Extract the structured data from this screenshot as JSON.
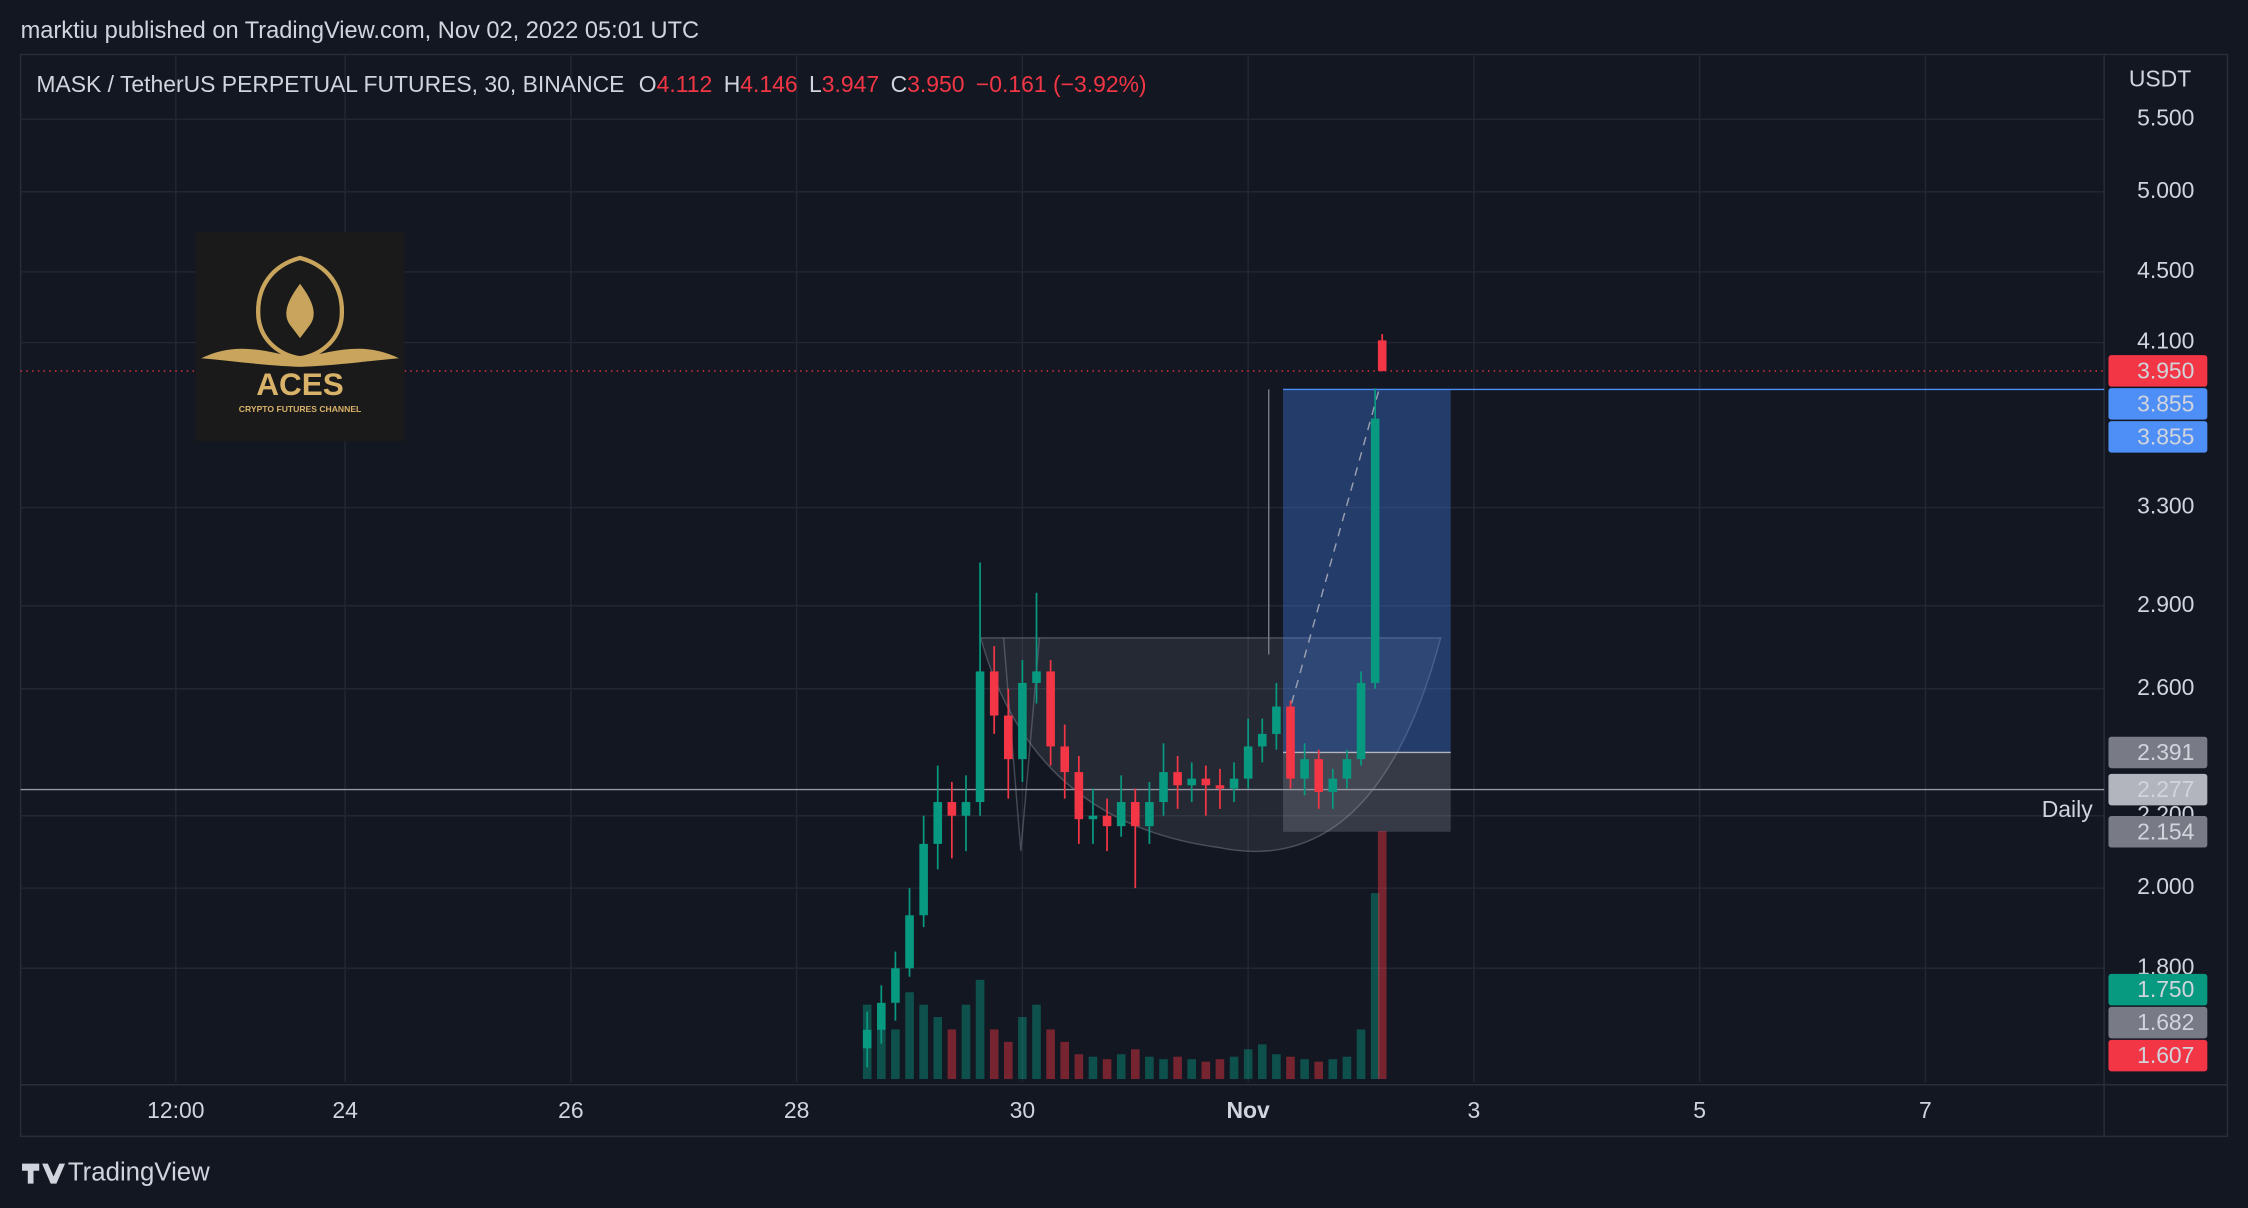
{
  "header": {
    "publisher": "marktiu published on TradingView.com, Nov 02, 2022 05:01 UTC",
    "symbol": "MASK / TetherUS PERPETUAL FUTURES, 30, BINANCE",
    "ohlc": [
      {
        "key": "O",
        "value": "4.112"
      },
      {
        "key": "H",
        "value": "4.146"
      },
      {
        "key": "L",
        "value": "3.947"
      },
      {
        "key": "C",
        "value": "3.950"
      }
    ],
    "change": "−0.161 (−3.92%)"
  },
  "logo": {
    "title": "ACES",
    "subtitle": "CRYPTO FUTURES CHANNEL"
  },
  "footer": {
    "brand": "TradingView"
  },
  "chart_data": {
    "type": "candlestick",
    "currency": "USDT",
    "log_scale": true,
    "grid": true,
    "up_color": "#089981",
    "down_color": "#f23645",
    "x": [
      "2022-10-28T15:00",
      "2022-10-28T18:00",
      "2022-10-28T21:00",
      "2022-10-29T00:00",
      "2022-10-29T03:00",
      "2022-10-29T06:00",
      "2022-10-29T09:00",
      "2022-10-29T12:00",
      "2022-10-29T15:00",
      "2022-10-29T18:00",
      "2022-10-29T21:00",
      "2022-10-30T00:00",
      "2022-10-30T03:00",
      "2022-10-30T06:00",
      "2022-10-30T09:00",
      "2022-10-30T12:00",
      "2022-10-30T15:00",
      "2022-10-30T18:00",
      "2022-10-30T21:00",
      "2022-10-31T00:00",
      "2022-10-31T03:00",
      "2022-10-31T06:00",
      "2022-10-31T09:00",
      "2022-10-31T12:00",
      "2022-10-31T15:00",
      "2022-10-31T18:00",
      "2022-10-31T21:00",
      "2022-11-01T00:00",
      "2022-11-01T03:00",
      "2022-11-01T06:00",
      "2022-11-01T09:00",
      "2022-11-01T12:00",
      "2022-11-01T15:00",
      "2022-11-01T18:00",
      "2022-11-01T21:00",
      "2022-11-02T00:00",
      "2022-11-02T03:00",
      "2022-11-02T04:30"
    ],
    "open": [
      1.62,
      1.66,
      1.72,
      1.8,
      1.93,
      2.12,
      2.24,
      2.2,
      2.24,
      2.66,
      2.51,
      2.37,
      2.62,
      2.66,
      2.41,
      2.33,
      2.19,
      2.2,
      2.17,
      2.24,
      2.17,
      2.24,
      2.33,
      2.29,
      2.31,
      2.29,
      2.28,
      2.31,
      2.41,
      2.45,
      2.54,
      2.31,
      2.37,
      2.27,
      2.31,
      2.37,
      2.62,
      4.112
    ],
    "high": [
      1.7,
      1.76,
      1.84,
      2.0,
      2.2,
      2.35,
      2.3,
      2.32,
      3.07,
      2.75,
      2.6,
      2.7,
      2.95,
      2.7,
      2.48,
      2.38,
      2.28,
      2.25,
      2.32,
      2.28,
      2.3,
      2.42,
      2.38,
      2.36,
      2.35,
      2.34,
      2.36,
      2.5,
      2.5,
      2.62,
      2.56,
      2.42,
      2.4,
      2.34,
      2.4,
      2.66,
      3.86,
      4.146
    ],
    "low": [
      1.58,
      1.63,
      1.68,
      1.78,
      1.9,
      2.05,
      2.08,
      2.1,
      2.2,
      2.45,
      2.25,
      2.3,
      2.55,
      2.35,
      2.25,
      2.12,
      2.12,
      2.1,
      2.14,
      2.0,
      2.12,
      2.2,
      2.22,
      2.24,
      2.2,
      2.22,
      2.24,
      2.28,
      2.36,
      2.4,
      2.28,
      2.26,
      2.22,
      2.22,
      2.28,
      2.35,
      2.6,
      3.947
    ],
    "close": [
      1.66,
      1.72,
      1.8,
      1.93,
      2.12,
      2.24,
      2.2,
      2.24,
      2.66,
      2.51,
      2.37,
      2.62,
      2.66,
      2.41,
      2.33,
      2.19,
      2.2,
      2.17,
      2.24,
      2.17,
      2.24,
      2.33,
      2.29,
      2.31,
      2.29,
      2.28,
      2.31,
      2.41,
      2.45,
      2.54,
      2.31,
      2.37,
      2.27,
      2.31,
      2.37,
      2.62,
      3.71,
      3.95
    ],
    "volume": [
      30,
      25,
      20,
      35,
      30,
      25,
      20,
      30,
      40,
      20,
      15,
      25,
      30,
      20,
      15,
      10,
      9,
      8,
      10,
      12,
      9,
      8,
      9,
      8,
      7,
      8,
      9,
      12,
      14,
      10,
      9,
      8,
      7,
      8,
      9,
      20,
      75,
      100
    ],
    "volume_lim": [
      0,
      100
    ],
    "xlim": [
      "2022-10-21T03:00",
      "2022-11-08T14:00"
    ],
    "xticks": [
      {
        "value": "2022-10-22T12:00",
        "label": "12:00"
      },
      {
        "value": "2022-10-24T00:00",
        "label": "24"
      },
      {
        "value": "2022-10-26T00:00",
        "label": "26"
      },
      {
        "value": "2022-10-28T00:00",
        "label": "28"
      },
      {
        "value": "2022-10-30T00:00",
        "label": "30"
      },
      {
        "value": "2022-11-01T00:00",
        "label": "Nov"
      },
      {
        "value": "2022-11-03T00:00",
        "label": "3"
      },
      {
        "value": "2022-11-05T00:00",
        "label": "5"
      },
      {
        "value": "2022-11-07T00:00",
        "label": "7"
      }
    ],
    "ylim": [
      1.55,
      5.99
    ],
    "yticks": [
      {
        "value": 5.5,
        "label": "5.500"
      },
      {
        "value": 5,
        "label": "5.000"
      },
      {
        "value": 4.5,
        "label": "4.500"
      },
      {
        "value": 4.1,
        "label": "4.100"
      },
      {
        "value": 3.3,
        "label": "3.300"
      },
      {
        "value": 2.9,
        "label": "2.900"
      },
      {
        "value": 2.6,
        "label": "2.600"
      },
      {
        "value": 2.2,
        "label": "2.200"
      },
      {
        "value": 2,
        "label": "2.000"
      },
      {
        "value": 1.8,
        "label": "1.800"
      }
    ],
    "price_labels": [
      {
        "value": 3.95,
        "label": "3.950",
        "color": "#f23645"
      },
      {
        "value": 3.855,
        "label": "3.855",
        "color": "#4e8ef7"
      },
      {
        "value": 3.855,
        "label": "3.855",
        "color": "#4e8ef7"
      },
      {
        "value": 2.391,
        "label": "2.391",
        "color": "#787b86"
      },
      {
        "value": 2.277,
        "label": "2.277",
        "color": "#b2b5be"
      },
      {
        "value": 2.154,
        "label": "2.154",
        "color": "#787b86"
      },
      {
        "value": 1.75,
        "label": "1.750",
        "color": "#089981"
      },
      {
        "value": 1.682,
        "label": "1.682",
        "color": "#787b86"
      },
      {
        "value": 1.607,
        "label": "1.607",
        "color": "#f23645"
      }
    ],
    "level_name": "Daily"
  }
}
